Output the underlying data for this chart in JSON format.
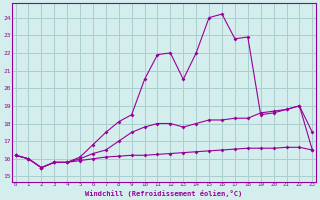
{
  "xlabel": "Windchill (Refroidissement éolien,°C)",
  "bg_color": "#d4eeed",
  "grid_color": "#aacfcf",
  "line_color": "#990099",
  "x_ticks": [
    0,
    1,
    2,
    3,
    4,
    5,
    6,
    7,
    8,
    9,
    10,
    11,
    12,
    13,
    14,
    15,
    16,
    17,
    18,
    19,
    20,
    21,
    22,
    23
  ],
  "y_ticks": [
    15,
    16,
    17,
    18,
    19,
    20,
    21,
    22,
    23,
    24
  ],
  "xlim": [
    -0.3,
    23.3
  ],
  "ylim": [
    14.7,
    24.8
  ],
  "series1_y": [
    16.2,
    16.0,
    15.5,
    15.8,
    15.8,
    15.9,
    16.0,
    16.1,
    16.15,
    16.2,
    16.2,
    16.25,
    16.3,
    16.35,
    16.4,
    16.45,
    16.5,
    16.55,
    16.6,
    16.6,
    16.6,
    16.65,
    16.65,
    16.5
  ],
  "series2_y": [
    16.2,
    16.0,
    15.5,
    15.8,
    15.8,
    16.1,
    16.8,
    17.5,
    18.1,
    18.5,
    20.5,
    21.9,
    22.0,
    20.5,
    22.0,
    24.0,
    24.2,
    22.8,
    22.9,
    18.5,
    18.6,
    18.8,
    19.0,
    17.5
  ],
  "series3_y": [
    16.2,
    16.0,
    15.5,
    15.8,
    15.8,
    16.0,
    16.3,
    16.5,
    17.0,
    17.5,
    17.8,
    18.0,
    18.0,
    17.8,
    18.0,
    18.2,
    18.2,
    18.3,
    18.3,
    18.6,
    18.7,
    18.8,
    19.0,
    16.5
  ]
}
